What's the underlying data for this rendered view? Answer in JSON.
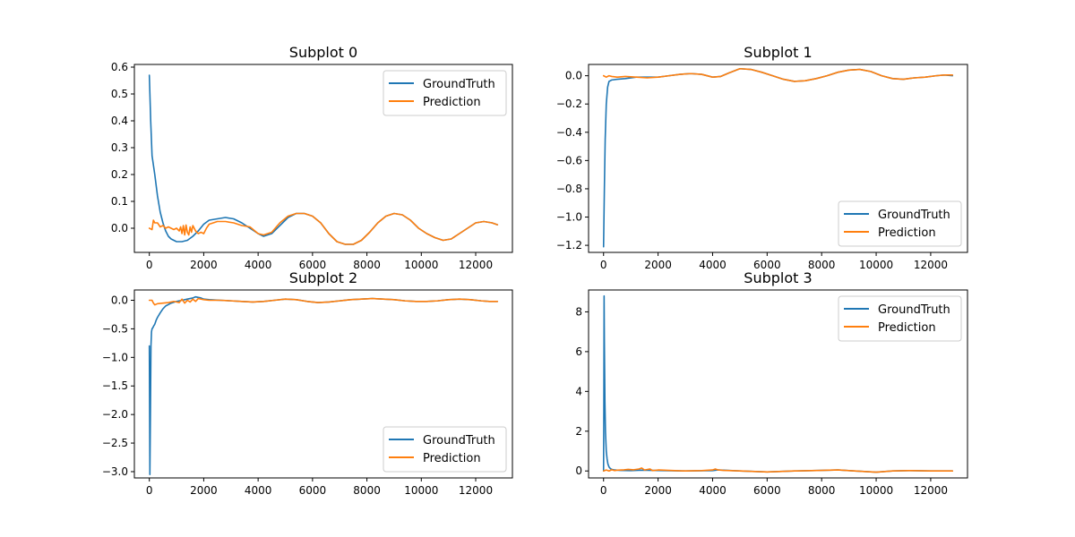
{
  "colors": {
    "ground_truth": "#1f77b4",
    "prediction": "#ff7f0e"
  },
  "chart_data": [
    {
      "type": "line",
      "title": "Subplot 0",
      "xlim": [
        -550,
        13350
      ],
      "ylim": [
        -0.09,
        0.61
      ],
      "xticks": [
        0,
        2000,
        4000,
        6000,
        8000,
        10000,
        12000
      ],
      "yticks": [
        0.0,
        0.1,
        0.2,
        0.3,
        0.4,
        0.5,
        0.6
      ],
      "ytick_labels": [
        "0.0",
        "0.1",
        "0.2",
        "0.3",
        "0.4",
        "0.5",
        "0.6"
      ],
      "legend_position": "upper right",
      "series": [
        {
          "name": "GroundTruth",
          "x": [
            0,
            50,
            100,
            200,
            300,
            400,
            500,
            600,
            700,
            800,
            1000,
            1200,
            1400,
            1600,
            1800,
            2000,
            2200,
            2500,
            2800,
            3100,
            3400,
            3700,
            4000,
            4200,
            4500,
            4800,
            5100,
            5400,
            5700,
            6000,
            6300,
            6600,
            6900,
            7200,
            7500,
            7800,
            8100,
            8400,
            8700,
            9000,
            9300,
            9600,
            9900,
            10200,
            10500,
            10800,
            11100,
            11400,
            11700,
            12000,
            12300,
            12600,
            12800
          ],
          "y": [
            0.57,
            0.4,
            0.27,
            0.2,
            0.12,
            0.06,
            0.02,
            -0.01,
            -0.03,
            -0.04,
            -0.05,
            -0.05,
            -0.045,
            -0.03,
            -0.01,
            0.015,
            0.03,
            0.035,
            0.04,
            0.035,
            0.02,
            0.0,
            -0.02,
            -0.03,
            -0.02,
            0.01,
            0.04,
            0.055,
            0.055,
            0.045,
            0.02,
            -0.02,
            -0.05,
            -0.06,
            -0.06,
            -0.045,
            -0.015,
            0.02,
            0.045,
            0.055,
            0.05,
            0.03,
            0.0,
            -0.02,
            -0.035,
            -0.045,
            -0.04,
            -0.02,
            0.0,
            0.02,
            0.025,
            0.02,
            0.013
          ]
        },
        {
          "name": "Prediction",
          "x": [
            0,
            100,
            150,
            200,
            300,
            400,
            500,
            600,
            700,
            800,
            900,
            1000,
            1100,
            1150,
            1200,
            1250,
            1300,
            1350,
            1400,
            1450,
            1500,
            1550,
            1600,
            1700,
            1800,
            1900,
            2000,
            2100,
            2200,
            2500,
            2800,
            3100,
            3400,
            3700,
            4000,
            4200,
            4500,
            4800,
            5100,
            5400,
            5700,
            6000,
            6300,
            6600,
            6900,
            7200,
            7500,
            7800,
            8100,
            8400,
            8700,
            9000,
            9300,
            9600,
            9900,
            10200,
            10500,
            10800,
            11100,
            11400,
            11700,
            12000,
            12300,
            12600,
            12800
          ],
          "y": [
            0.0,
            -0.005,
            0.03,
            0.02,
            0.02,
            0.005,
            0.01,
            0.0,
            0.005,
            0.0,
            -0.005,
            0.0,
            -0.01,
            0.005,
            -0.02,
            0.01,
            -0.025,
            0.012,
            -0.015,
            -0.025,
            0.005,
            -0.015,
            0.01,
            -0.01,
            -0.02,
            -0.015,
            -0.02,
            0.0,
            0.015,
            0.025,
            0.025,
            0.02,
            0.01,
            0.005,
            -0.02,
            -0.025,
            -0.015,
            0.02,
            0.045,
            0.055,
            0.055,
            0.045,
            0.02,
            -0.02,
            -0.05,
            -0.06,
            -0.06,
            -0.045,
            -0.015,
            0.02,
            0.045,
            0.055,
            0.05,
            0.03,
            0.0,
            -0.02,
            -0.035,
            -0.045,
            -0.04,
            -0.02,
            0.0,
            0.02,
            0.025,
            0.02,
            0.013
          ]
        }
      ]
    },
    {
      "type": "line",
      "title": "Subplot 1",
      "xlim": [
        -550,
        13350
      ],
      "ylim": [
        -1.25,
        0.08
      ],
      "xticks": [
        0,
        2000,
        4000,
        6000,
        8000,
        10000,
        12000
      ],
      "yticks": [
        0.0,
        -0.2,
        -0.4,
        -0.6,
        -0.8,
        -1.0,
        -1.2
      ],
      "ytick_labels": [
        "0.0",
        "−0.2",
        "−0.4",
        "−0.6",
        "−0.8",
        "−1.0",
        "−1.2"
      ],
      "legend_position": "lower right",
      "series": [
        {
          "name": "GroundTruth",
          "x": [
            0,
            30,
            60,
            100,
            150,
            200,
            300,
            500,
            800,
            1200,
            1600,
            2000,
            2400,
            2800,
            3200,
            3600,
            4000,
            4300,
            4600,
            5000,
            5400,
            5800,
            6200,
            6600,
            7000,
            7400,
            7800,
            8200,
            8600,
            9000,
            9400,
            9800,
            10200,
            10600,
            11000,
            11400,
            11800,
            12200,
            12500,
            12800
          ],
          "y": [
            -1.21,
            -0.8,
            -0.45,
            -0.2,
            -0.08,
            -0.04,
            -0.03,
            -0.025,
            -0.02,
            -0.01,
            -0.01,
            -0.01,
            0.0,
            0.01,
            0.015,
            0.01,
            -0.01,
            -0.005,
            0.02,
            0.05,
            0.045,
            0.025,
            0.0,
            -0.025,
            -0.04,
            -0.035,
            -0.02,
            0.0,
            0.025,
            0.04,
            0.045,
            0.03,
            0.0,
            -0.02,
            -0.025,
            -0.015,
            -0.01,
            0.0,
            0.005,
            0.0
          ]
        },
        {
          "name": "Prediction",
          "x": [
            0,
            100,
            200,
            300,
            500,
            800,
            1200,
            1600,
            2000,
            2400,
            2800,
            3200,
            3600,
            4000,
            4300,
            4600,
            5000,
            5400,
            5800,
            6200,
            6600,
            7000,
            7400,
            7800,
            8200,
            8600,
            9000,
            9400,
            9800,
            10200,
            10600,
            11000,
            11400,
            11800,
            12200,
            12500,
            12800
          ],
          "y": [
            0.0,
            -0.01,
            0.0,
            -0.005,
            -0.01,
            -0.005,
            -0.01,
            -0.015,
            -0.01,
            0.0,
            0.01,
            0.015,
            0.01,
            -0.01,
            -0.005,
            0.02,
            0.05,
            0.045,
            0.025,
            0.0,
            -0.025,
            -0.04,
            -0.035,
            -0.02,
            0.0,
            0.025,
            0.04,
            0.045,
            0.03,
            0.0,
            -0.02,
            -0.025,
            -0.015,
            -0.01,
            0.0,
            0.005,
            0.005
          ]
        }
      ]
    },
    {
      "type": "line",
      "title": "Subplot 2",
      "xlim": [
        -550,
        13350
      ],
      "ylim": [
        -3.11,
        0.18
      ],
      "xticks": [
        0,
        2000,
        4000,
        6000,
        8000,
        10000,
        12000
      ],
      "yticks": [
        0.0,
        -0.5,
        -1.0,
        -1.5,
        -2.0,
        -2.5,
        -3.0
      ],
      "ytick_labels": [
        "0.0",
        "−0.5",
        "−1.0",
        "−1.5",
        "−2.0",
        "−2.5",
        "−3.0"
      ],
      "legend_position": "lower right",
      "series": [
        {
          "name": "GroundTruth",
          "x": [
            0,
            20,
            40,
            60,
            80,
            100,
            130,
            160,
            200,
            250,
            300,
            400,
            500,
            600,
            800,
            1000,
            1200,
            1400,
            1600,
            1700,
            1800,
            1900,
            2000,
            2200,
            2600,
            3000,
            3400,
            3800,
            4200,
            4600,
            5000,
            5400,
            5800,
            6200,
            6600,
            7000,
            7400,
            7800,
            8200,
            8600,
            9000,
            9400,
            9800,
            10200,
            10600,
            11000,
            11400,
            11800,
            12200,
            12500,
            12800
          ],
          "y": [
            -0.8,
            -3.05,
            -2.0,
            -0.8,
            -0.55,
            -0.5,
            -0.48,
            -0.45,
            -0.42,
            -0.35,
            -0.3,
            -0.22,
            -0.15,
            -0.1,
            -0.05,
            -0.02,
            0.0,
            0.02,
            0.04,
            0.06,
            0.05,
            0.04,
            0.02,
            0.01,
            0.0,
            -0.01,
            -0.02,
            -0.03,
            -0.02,
            0.0,
            0.02,
            0.01,
            -0.02,
            -0.04,
            -0.03,
            -0.01,
            0.01,
            0.02,
            0.03,
            0.02,
            0.01,
            -0.01,
            -0.02,
            -0.02,
            -0.01,
            0.01,
            0.02,
            0.01,
            -0.01,
            -0.02,
            -0.02
          ]
        },
        {
          "name": "Prediction",
          "x": [
            0,
            100,
            150,
            200,
            300,
            500,
            700,
            900,
            1100,
            1200,
            1300,
            1400,
            1500,
            1600,
            1700,
            1800,
            2000,
            2200,
            2600,
            3000,
            3400,
            3800,
            4200,
            4600,
            5000,
            5400,
            5800,
            6200,
            6600,
            7000,
            7400,
            7800,
            8200,
            8600,
            9000,
            9400,
            9800,
            10200,
            10600,
            11000,
            11400,
            11800,
            12200,
            12500,
            12800
          ],
          "y": [
            0.0,
            0.0,
            -0.05,
            -0.08,
            -0.06,
            -0.05,
            -0.04,
            -0.02,
            -0.04,
            0.02,
            -0.05,
            0.0,
            -0.03,
            0.02,
            -0.02,
            0.03,
            0.01,
            0.0,
            0.0,
            -0.01,
            -0.02,
            -0.03,
            -0.02,
            0.0,
            0.02,
            0.01,
            -0.02,
            -0.04,
            -0.03,
            -0.01,
            0.01,
            0.02,
            0.03,
            0.02,
            0.01,
            -0.01,
            -0.02,
            -0.02,
            -0.01,
            0.01,
            0.02,
            0.01,
            -0.01,
            -0.02,
            -0.02
          ]
        }
      ]
    },
    {
      "type": "line",
      "title": "Subplot 3",
      "xlim": [
        -550,
        13350
      ],
      "ylim": [
        -0.35,
        9.1
      ],
      "xticks": [
        0,
        2000,
        4000,
        6000,
        8000,
        10000,
        12000
      ],
      "yticks": [
        0,
        2,
        4,
        6,
        8
      ],
      "ytick_labels": [
        "0",
        "2",
        "4",
        "6",
        "8"
      ],
      "legend_position": "upper right",
      "series": [
        {
          "name": "GroundTruth",
          "x": [
            0,
            10,
            20,
            30,
            50,
            70,
            100,
            130,
            160,
            200,
            250,
            300,
            400,
            600,
            1000,
            1400,
            1800,
            2200,
            3000,
            4000,
            4200,
            5000,
            6000,
            7000,
            8000,
            8600,
            9200,
            10000,
            10600,
            11200,
            12000,
            12800
          ],
          "y": [
            0.0,
            3.0,
            8.8,
            6.5,
            3.5,
            2.0,
            1.0,
            0.6,
            0.35,
            0.2,
            0.12,
            0.08,
            0.05,
            0.03,
            0.02,
            0.04,
            0.03,
            0.02,
            0.0,
            0.02,
            0.05,
            0.0,
            -0.05,
            0.0,
            0.03,
            0.05,
            0.0,
            -0.06,
            0.0,
            0.02,
            0.0,
            0.0
          ]
        },
        {
          "name": "Prediction",
          "x": [
            0,
            100,
            200,
            300,
            400,
            500,
            700,
            900,
            1100,
            1300,
            1400,
            1500,
            1700,
            1800,
            2000,
            2400,
            3000,
            3600,
            4000,
            4100,
            4200,
            4400,
            5000,
            6000,
            7000,
            8000,
            8600,
            9200,
            10000,
            10600,
            11200,
            12000,
            12800
          ],
          "y": [
            0.0,
            0.05,
            0.0,
            0.06,
            0.02,
            0.04,
            0.05,
            0.08,
            0.06,
            0.1,
            0.15,
            0.05,
            0.1,
            0.02,
            0.05,
            0.03,
            0.0,
            0.02,
            0.05,
            0.1,
            0.05,
            0.03,
            0.0,
            -0.05,
            0.0,
            0.03,
            0.05,
            0.0,
            -0.06,
            0.0,
            0.02,
            0.0,
            0.0
          ]
        }
      ]
    }
  ]
}
